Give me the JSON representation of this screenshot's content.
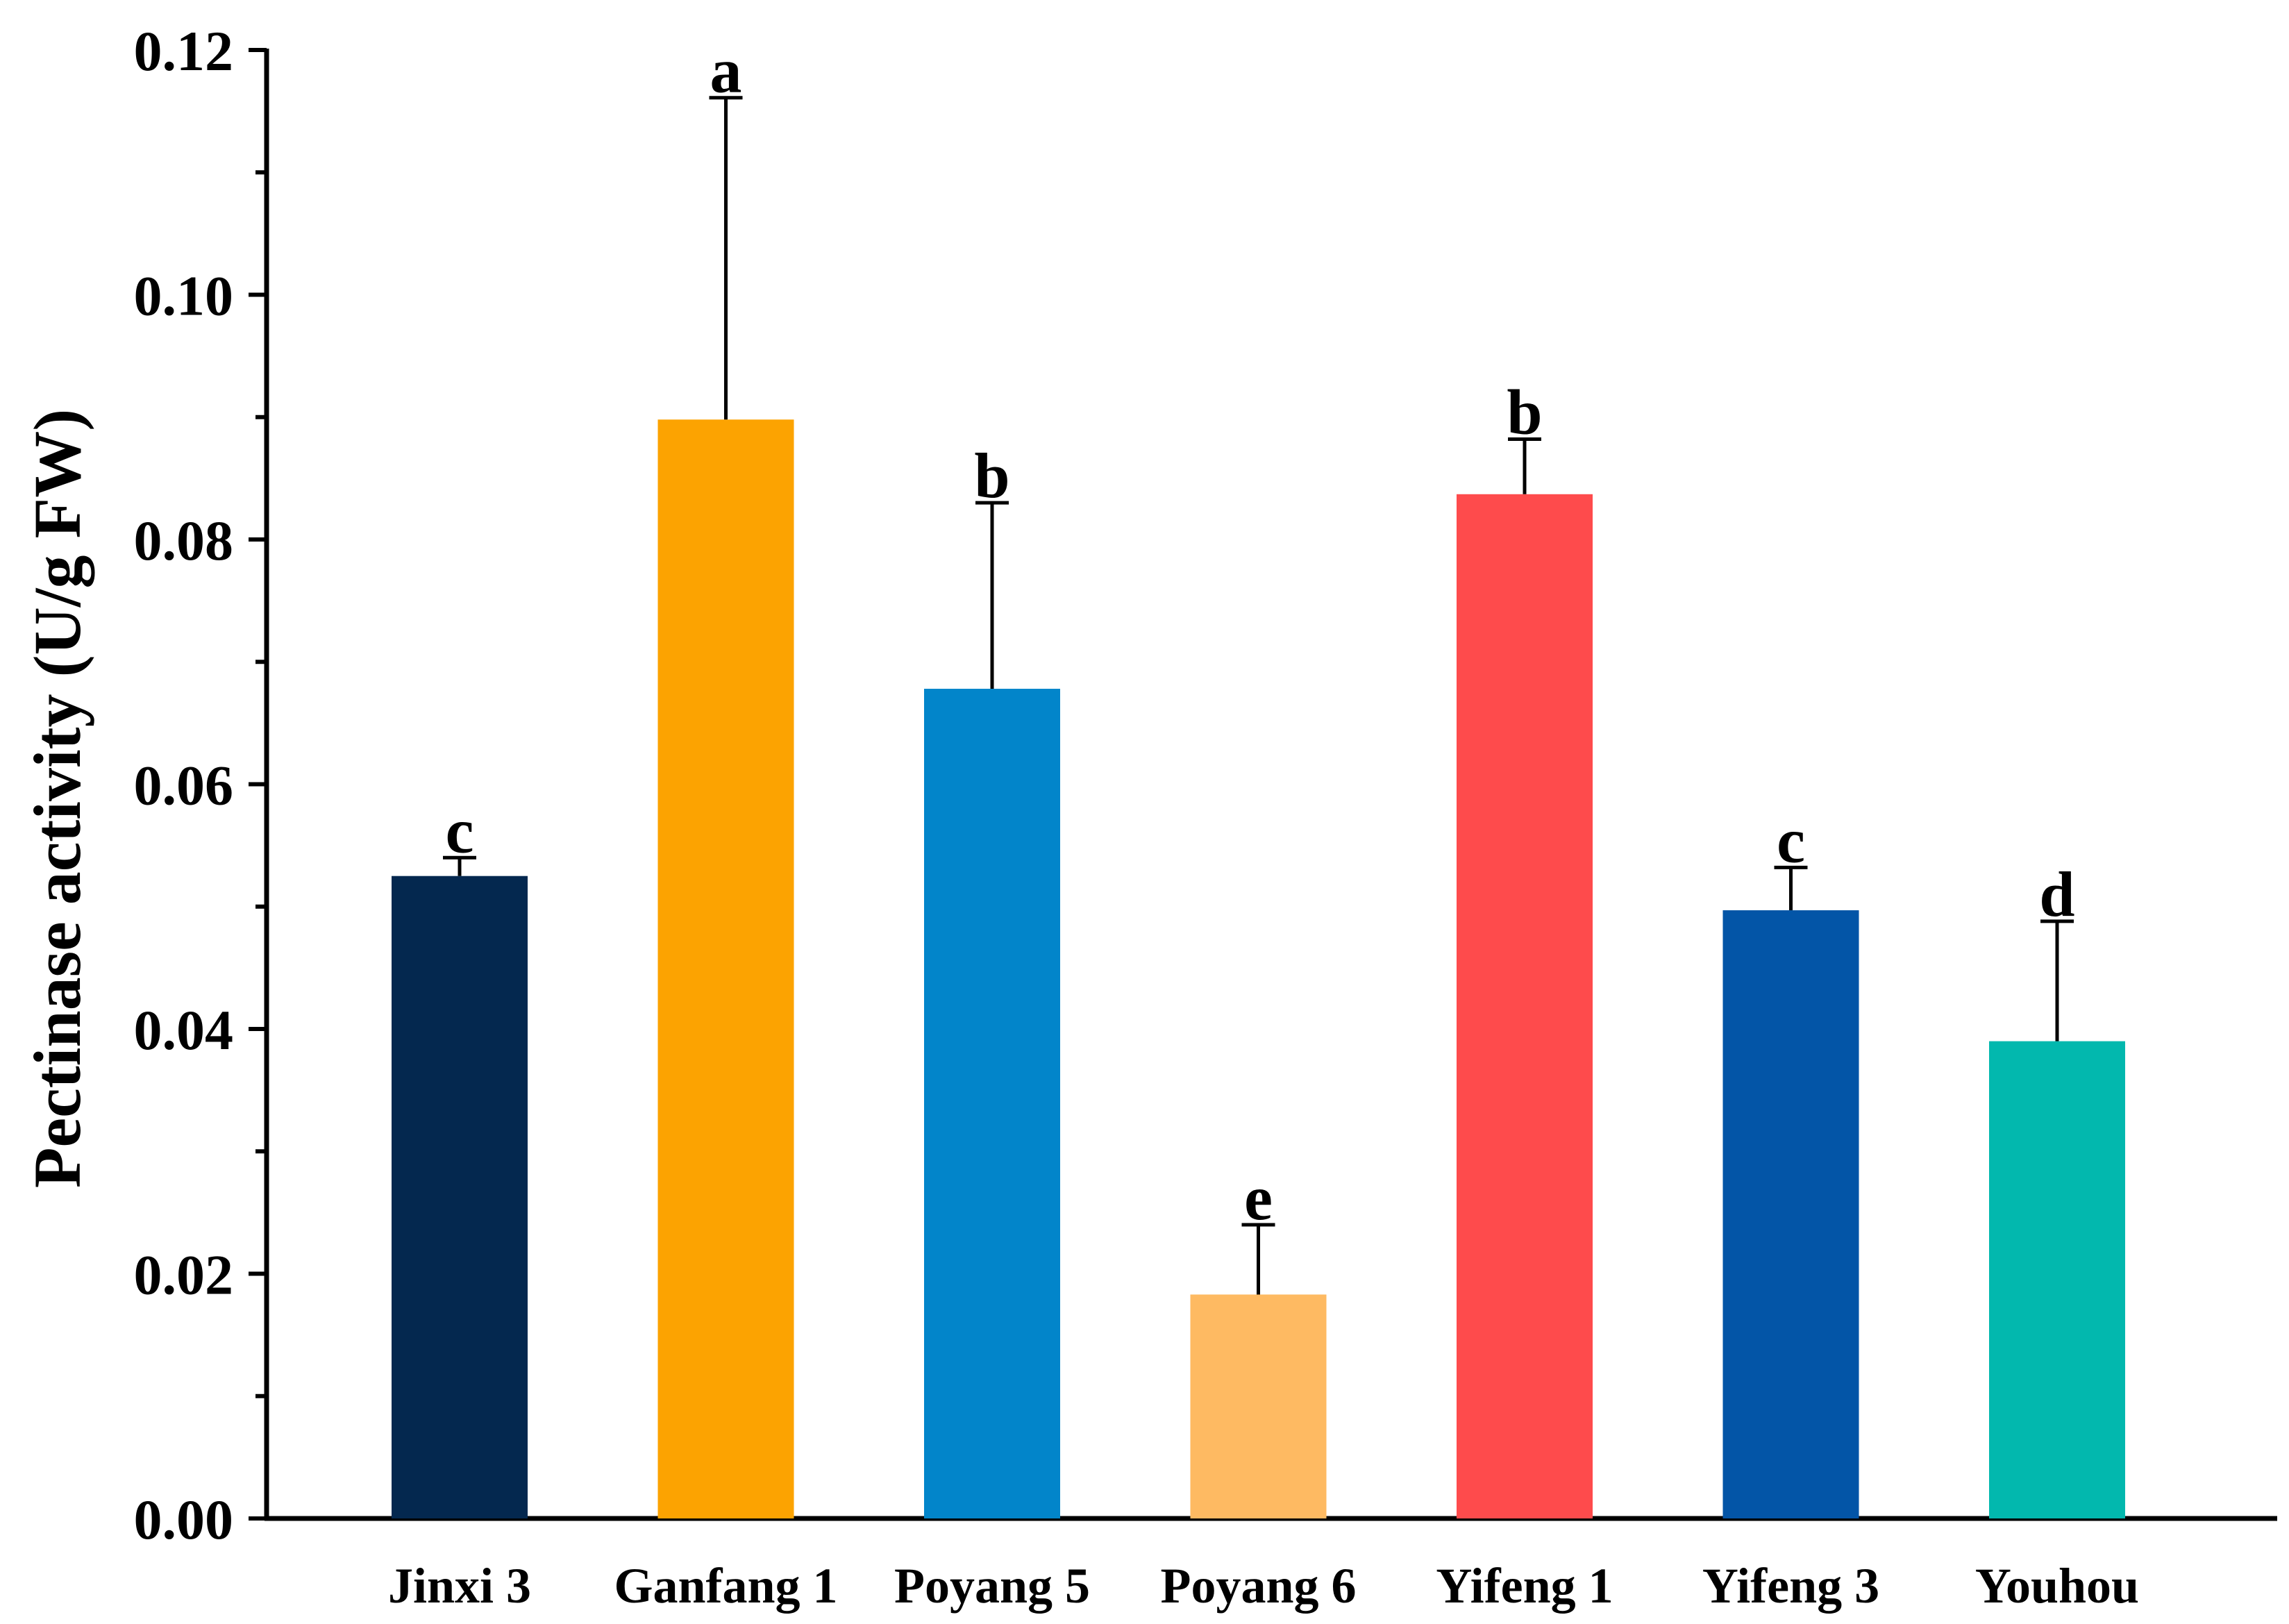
{
  "chart_data": {
    "type": "bar",
    "title": "",
    "xlabel": "",
    "ylabel": "Pectinase activity (U/g FW)",
    "ylim": [
      0,
      0.12
    ],
    "major_ticks": [
      "0.00",
      "0.02",
      "0.04",
      "0.06",
      "0.08",
      "0.10",
      "0.12"
    ],
    "minor_tick_step": 0.01,
    "grid": false,
    "error_bars": "upper",
    "categories": [
      "Jinxi 3",
      "Ganfang 1",
      "Poyang 5",
      "Poyang 6",
      "Yifeng 1",
      "Yifeng 3",
      "Youhou"
    ],
    "values": [
      0.0525,
      0.0898,
      0.0678,
      0.0183,
      0.0837,
      0.0497,
      0.039
    ],
    "errors": [
      0.0015,
      0.0263,
      0.0152,
      0.0057,
      0.0045,
      0.0035,
      0.0098
    ],
    "significance_letters": [
      "c",
      "a",
      "b",
      "e",
      "b",
      "c",
      "d"
    ],
    "colors": [
      "#04284F",
      "#FCA301",
      "#0285CA",
      "#FEBA62",
      "#FE4B4C",
      "#0355A7",
      "#02B8AE"
    ]
  }
}
